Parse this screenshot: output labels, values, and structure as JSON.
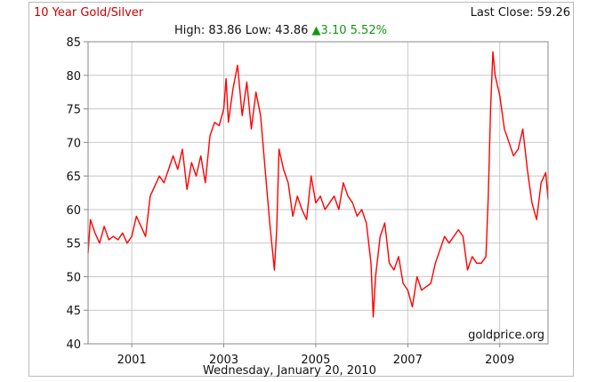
{
  "header": {
    "title": "10 Year Gold/Silver",
    "last_close_label": "Last Close:",
    "last_close_value": "59.26",
    "high_label": "High:",
    "high_value": "83.86",
    "low_label": "Low:",
    "low_value": "43.86",
    "change_arrow": "▲",
    "change_value": "3.10",
    "change_percent": "5.52%",
    "up_color": "#119911"
  },
  "footer": {
    "date": "Wednesday, January 20, 2010"
  },
  "chart_data": {
    "type": "line",
    "title": "10 Year Gold/Silver",
    "xlabel": "",
    "ylabel": "",
    "watermark": "goldprice.org",
    "xlim": [
      2000.05,
      2010.05
    ],
    "ylim": [
      40,
      85
    ],
    "yticks": [
      40,
      45,
      50,
      55,
      60,
      65,
      70,
      75,
      80,
      85
    ],
    "xticks": [
      2001,
      2003,
      2005,
      2007,
      2009
    ],
    "grid": true,
    "line_color": "#ff0000",
    "series": [
      {
        "x": [
          2000.05,
          2000.1,
          2000.2,
          2000.3,
          2000.4,
          2000.5,
          2000.6,
          2000.7,
          2000.8,
          2000.9,
          2001.0,
          2001.1,
          2001.2,
          2001.3,
          2001.4,
          2001.5,
          2001.6,
          2001.7,
          2001.8,
          2001.9,
          2002.0,
          2002.1,
          2002.2,
          2002.3,
          2002.4,
          2002.5,
          2002.6,
          2002.7,
          2002.8,
          2002.9,
          2003.0,
          2003.05,
          2003.1,
          2003.2,
          2003.3,
          2003.4,
          2003.5,
          2003.6,
          2003.7,
          2003.8,
          2003.9,
          2004.0,
          2004.1,
          2004.15,
          2004.2,
          2004.3,
          2004.4,
          2004.5,
          2004.6,
          2004.7,
          2004.8,
          2004.9,
          2005.0,
          2005.1,
          2005.2,
          2005.3,
          2005.4,
          2005.5,
          2005.6,
          2005.7,
          2005.8,
          2005.9,
          2006.0,
          2006.1,
          2006.2,
          2006.25,
          2006.3,
          2006.4,
          2006.5,
          2006.6,
          2006.7,
          2006.8,
          2006.9,
          2007.0,
          2007.1,
          2007.2,
          2007.3,
          2007.4,
          2007.5,
          2007.6,
          2007.7,
          2007.8,
          2007.9,
          2008.0,
          2008.1,
          2008.2,
          2008.3,
          2008.4,
          2008.5,
          2008.6,
          2008.7,
          2008.75,
          2008.8,
          2008.85,
          2008.9,
          2009.0,
          2009.1,
          2009.2,
          2009.3,
          2009.4,
          2009.5,
          2009.6,
          2009.7,
          2009.8,
          2009.9,
          2010.0,
          2010.05
        ],
        "y": [
          53.5,
          58.5,
          56.5,
          55.0,
          57.5,
          55.5,
          56.0,
          55.5,
          56.5,
          55.0,
          56.0,
          59.0,
          57.5,
          56.0,
          62.0,
          63.5,
          65.0,
          64.0,
          66.0,
          68.0,
          66.0,
          69.0,
          63.0,
          67.0,
          65.0,
          68.0,
          64.0,
          71.0,
          73.0,
          72.5,
          75.0,
          79.5,
          73.0,
          78.0,
          81.5,
          74.0,
          79.0,
          72.0,
          77.5,
          74.0,
          66.0,
          58.0,
          51.0,
          57.0,
          69.0,
          66.0,
          64.0,
          59.0,
          62.0,
          60.0,
          58.5,
          65.0,
          61.0,
          62.0,
          60.0,
          61.0,
          62.0,
          60.0,
          64.0,
          62.0,
          61.0,
          59.0,
          60.0,
          58.0,
          52.0,
          44.0,
          50.0,
          56.0,
          58.0,
          52.0,
          51.0,
          53.0,
          49.0,
          48.0,
          45.5,
          50.0,
          48.0,
          48.5,
          49.0,
          52.0,
          54.0,
          56.0,
          55.0,
          56.0,
          57.0,
          56.0,
          51.0,
          53.0,
          52.0,
          52.0,
          53.0,
          62.0,
          75.0,
          83.5,
          80.0,
          77.0,
          72.0,
          70.0,
          68.0,
          69.0,
          72.0,
          66.0,
          61.0,
          58.5,
          64.0,
          65.5,
          61.5
        ]
      }
    ]
  }
}
